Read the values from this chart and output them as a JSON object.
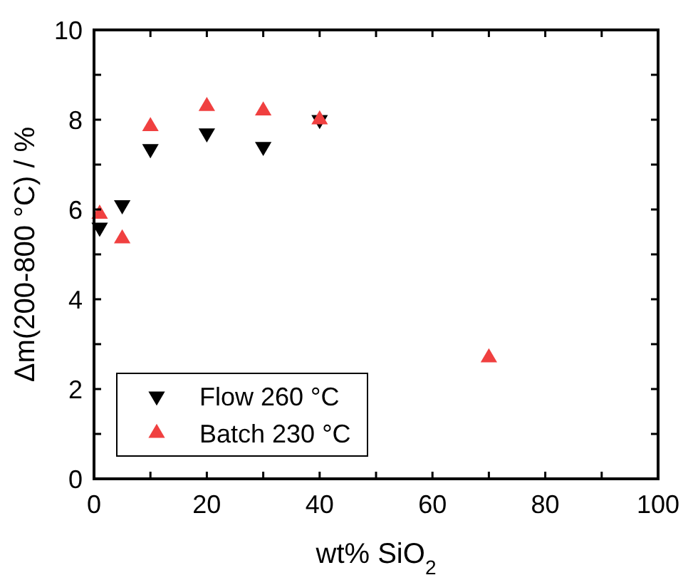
{
  "chart_data": {
    "type": "scatter",
    "xlabel": "wt% SiO$_{2}$",
    "ylabel": "Δm(200-800 °C) / %",
    "xlim": [
      0,
      100
    ],
    "xticks": [
      0,
      {
        "value": 10,
        "label": null
      },
      20,
      {
        "value": 30,
        "label": null
      },
      40,
      {
        "value": 50,
        "label": null
      },
      60,
      {
        "value": 70,
        "label": null
      },
      80,
      {
        "value": 90,
        "label": null
      },
      100
    ],
    "ylim": [
      0,
      10
    ],
    "yticks": [
      0,
      {
        "value": 1,
        "label": null
      },
      2,
      {
        "value": 3,
        "label": null
      },
      4,
      {
        "value": 5,
        "label": null
      },
      6,
      {
        "value": 7,
        "label": null
      },
      8,
      {
        "value": 9,
        "label": null
      },
      10
    ],
    "grid": false,
    "legend": "bottom left",
    "series": [
      {
        "name": "Flow 260 °C",
        "color": "#000000",
        "marker": "triangle-down",
        "x": [
          1,
          5,
          10,
          20,
          30,
          40
        ],
        "values": [
          5.6,
          6.1,
          7.35,
          7.7,
          7.4,
          8.0
        ]
      },
      {
        "name": "Batch 230 °C",
        "color": "#f04040",
        "marker": "triangle",
        "x": [
          1,
          5,
          10,
          20,
          30,
          40,
          70
        ],
        "values": [
          5.9,
          5.35,
          7.85,
          8.3,
          8.2,
          8.0,
          2.7
        ]
      }
    ]
  }
}
